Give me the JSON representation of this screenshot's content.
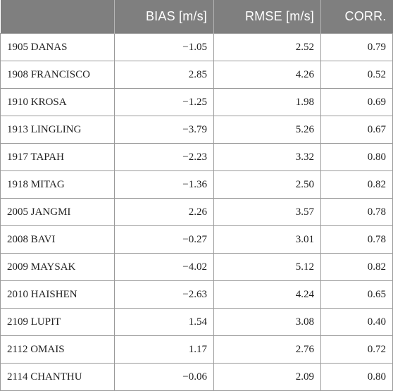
{
  "table": {
    "headers": [
      "",
      "BIAS [m/s]",
      "RMSE [m/s]",
      "CORR."
    ],
    "rows": [
      {
        "name": "1905 DANAS",
        "bias": "−1.05",
        "rmse": "2.52",
        "corr": "0.79"
      },
      {
        "name": "1908 FRANCISCO",
        "bias": "2.85",
        "rmse": "4.26",
        "corr": "0.52"
      },
      {
        "name": "1910 KROSA",
        "bias": "−1.25",
        "rmse": "1.98",
        "corr": "0.69"
      },
      {
        "name": "1913 LINGLING",
        "bias": "−3.79",
        "rmse": "5.26",
        "corr": "0.67"
      },
      {
        "name": "1917 TAPAH",
        "bias": "−2.23",
        "rmse": "3.32",
        "corr": "0.80"
      },
      {
        "name": "1918 MITAG",
        "bias": "−1.36",
        "rmse": "2.50",
        "corr": "0.82"
      },
      {
        "name": "2005 JANGMI",
        "bias": "2.26",
        "rmse": "3.57",
        "corr": "0.78"
      },
      {
        "name": "2008 BAVI",
        "bias": "−0.27",
        "rmse": "3.01",
        "corr": "0.78"
      },
      {
        "name": "2009 MAYSAK",
        "bias": "−4.02",
        "rmse": "5.12",
        "corr": "0.82"
      },
      {
        "name": "2010 HAISHEN",
        "bias": "−2.63",
        "rmse": "4.24",
        "corr": "0.65"
      },
      {
        "name": "2109 LUPIT",
        "bias": "1.54",
        "rmse": "3.08",
        "corr": "0.40"
      },
      {
        "name": "2112 OMAIS",
        "bias": "1.17",
        "rmse": "2.76",
        "corr": "0.72"
      },
      {
        "name": "2114 CHANTHU",
        "bias": "−0.06",
        "rmse": "2.09",
        "corr": "0.80"
      }
    ]
  },
  "colors": {
    "header_background": "#7f7f7f",
    "header_text": "#ffffff",
    "grid_lines": "#9a9a9a"
  }
}
